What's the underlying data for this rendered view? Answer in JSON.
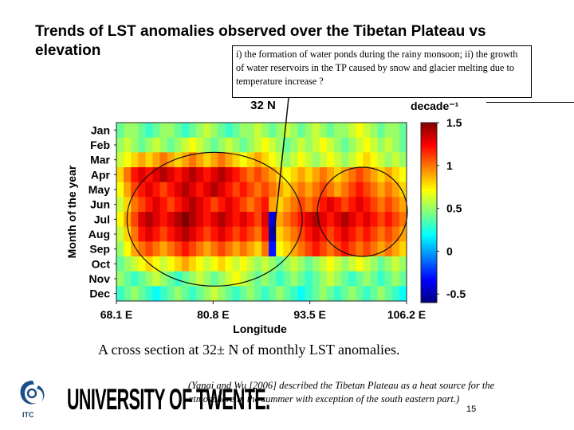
{
  "slide": {
    "title_line1": "Trends of LST anomalies observed over the Tibetan Plateau vs",
    "title_line2": "elevation",
    "note": "i) the formation of water ponds during the rainy monsoon; ii) the growth of water reservoirs in the TP caused by snow and glacier melting due to temperature increase ?",
    "caption": "A cross section at 32± N of monthly LST anomalies.",
    "citation": "(Yanai and Wu [2006] described the Tibetan Plateau as a heat source for the atmosphere in the summer with exception of the south eastern part.)",
    "page_number": "15",
    "logo_text": "UNIVERSITY OF TWENTE.",
    "logo_sub": "ITC"
  },
  "chart_data": {
    "type": "heatmap",
    "title": "32 N",
    "colorbar_label": "decade⁻¹",
    "xlabel": "Longitude",
    "ylabel": "Month of the year",
    "x_tick_labels": [
      "68.1 E",
      "80.8 E",
      "93.5 E",
      "106.2 E"
    ],
    "x_tick_values": [
      68.1,
      80.8,
      93.5,
      106.2
    ],
    "xlim": [
      68.1,
      106.2
    ],
    "y_tick_labels": [
      "Jan",
      "Feb",
      "Mar",
      "Apr",
      "May",
      "Jun",
      "Jul",
      "Aug",
      "Sep",
      "Oct",
      "Nov",
      "Dec"
    ],
    "colorbar_tick_labels": [
      "1.5",
      "1",
      "0.5",
      "0",
      "-0.5"
    ],
    "colorbar_tick_values": [
      1.5,
      1,
      0.5,
      0,
      -0.5
    ],
    "zlim": [
      -0.6,
      1.5
    ],
    "colormap": "jet",
    "annotations": [
      {
        "shape": "ellipse",
        "lon_range": [
          69.5,
          92.5
        ],
        "months": [
          "Mar",
          "Nov"
        ]
      },
      {
        "shape": "ellipse",
        "lon_range": [
          94.5,
          106.3
        ],
        "months": [
          "Apr",
          "Sep"
        ]
      },
      {
        "shape": "line",
        "from": "note",
        "to_lon": 88.8,
        "to_month": "Aug"
      }
    ],
    "rows": [
      {
        "month": "Jan",
        "values": [
          0.4,
          0.5,
          0.5,
          0.4,
          0.3,
          0.4,
          0.5,
          0.5,
          0.4,
          0.3,
          0.4,
          0.5,
          0.6,
          0.5,
          0.4,
          0.3,
          0.4,
          0.5,
          0.5,
          0.6,
          0.5,
          0.4,
          0.5,
          0.6,
          0.5,
          0.4,
          0.5,
          0.6,
          0.5,
          0.4,
          0.5,
          0.5,
          0.6,
          0.7,
          0.6,
          0.5,
          0.4,
          0.5,
          0.5,
          0.4
        ]
      },
      {
        "month": "Feb",
        "values": [
          0.5,
          0.6,
          0.5,
          0.4,
          0.5,
          0.6,
          0.5,
          0.4,
          0.5,
          0.6,
          0.7,
          0.6,
          0.5,
          0.4,
          0.5,
          0.6,
          0.5,
          0.4,
          0.5,
          0.6,
          0.7,
          0.6,
          0.5,
          0.4,
          0.5,
          0.6,
          0.5,
          0.6,
          0.7,
          0.6,
          0.5,
          0.4,
          0.5,
          0.6,
          0.7,
          0.6,
          0.5,
          0.6,
          0.5,
          0.4
        ]
      },
      {
        "month": "Mar",
        "values": [
          0.6,
          0.7,
          0.8,
          0.9,
          0.8,
          0.9,
          1.0,
          0.9,
          0.8,
          0.9,
          1.0,
          0.9,
          0.8,
          0.9,
          1.0,
          0.9,
          0.8,
          0.7,
          0.8,
          0.9,
          0.8,
          0.7,
          0.6,
          0.5,
          0.6,
          0.7,
          0.6,
          0.5,
          0.6,
          0.7,
          0.6,
          0.5,
          0.6,
          0.7,
          0.8,
          0.7,
          0.6,
          0.5,
          0.6,
          0.5
        ]
      },
      {
        "month": "Apr",
        "values": [
          0.8,
          1.0,
          1.2,
          1.3,
          1.2,
          1.3,
          1.4,
          1.3,
          1.2,
          1.3,
          1.4,
          1.3,
          1.2,
          1.3,
          1.4,
          1.3,
          1.2,
          1.1,
          1.0,
          1.1,
          1.0,
          0.9,
          0.8,
          0.7,
          0.8,
          0.9,
          0.8,
          0.9,
          1.0,
          0.9,
          0.8,
          0.9,
          1.0,
          1.1,
          1.0,
          0.9,
          0.8,
          0.9,
          0.8,
          0.7
        ]
      },
      {
        "month": "May",
        "values": [
          0.7,
          0.9,
          1.1,
          1.2,
          1.3,
          1.2,
          1.1,
          1.2,
          1.3,
          1.4,
          1.3,
          1.2,
          1.3,
          1.4,
          1.3,
          1.2,
          1.1,
          1.2,
          1.1,
          1.0,
          1.1,
          1.0,
          0.9,
          0.8,
          0.9,
          1.0,
          0.9,
          1.0,
          1.1,
          1.0,
          0.9,
          1.0,
          1.1,
          1.2,
          1.1,
          1.0,
          0.9,
          1.0,
          0.9,
          0.8
        ]
      },
      {
        "month": "Jun",
        "values": [
          0.6,
          0.8,
          1.0,
          1.1,
          1.2,
          1.3,
          1.2,
          1.1,
          1.2,
          1.3,
          1.4,
          1.3,
          1.2,
          1.1,
          1.2,
          1.3,
          1.2,
          1.1,
          1.0,
          1.1,
          1.2,
          0.9,
          0.8,
          0.9,
          1.0,
          1.1,
          1.0,
          1.1,
          1.2,
          1.3,
          1.2,
          1.1,
          1.2,
          1.3,
          1.2,
          1.1,
          1.0,
          1.1,
          1.0,
          0.9
        ]
      },
      {
        "month": "Jul",
        "values": [
          0.7,
          0.9,
          1.1,
          1.3,
          1.4,
          1.3,
          1.2,
          1.3,
          1.4,
          1.5,
          1.4,
          1.3,
          1.2,
          1.3,
          1.4,
          1.3,
          1.2,
          1.3,
          1.2,
          1.1,
          1.3,
          -0.4,
          0.9,
          1.0,
          1.1,
          1.2,
          1.3,
          1.4,
          1.3,
          1.2,
          1.3,
          1.4,
          1.3,
          1.2,
          1.3,
          1.2,
          1.1,
          1.2,
          1.1,
          1.0
        ]
      },
      {
        "month": "Aug",
        "values": [
          0.6,
          0.8,
          1.0,
          1.2,
          1.3,
          1.2,
          1.1,
          1.2,
          1.3,
          1.4,
          1.3,
          1.2,
          1.1,
          1.2,
          1.3,
          1.2,
          1.1,
          1.2,
          1.1,
          1.0,
          1.2,
          -0.5,
          0.8,
          0.9,
          1.0,
          1.1,
          1.2,
          1.3,
          1.2,
          1.1,
          1.2,
          1.3,
          1.2,
          1.1,
          1.2,
          1.1,
          1.0,
          1.1,
          1.0,
          0.9
        ]
      },
      {
        "month": "Sep",
        "values": [
          0.5,
          0.7,
          0.9,
          1.0,
          1.1,
          1.0,
          0.9,
          1.0,
          1.1,
          1.2,
          1.1,
          1.0,
          0.9,
          1.0,
          1.1,
          1.0,
          0.9,
          1.0,
          0.9,
          0.8,
          1.0,
          -0.3,
          0.7,
          0.8,
          0.9,
          1.0,
          1.1,
          1.2,
          1.1,
          1.0,
          1.1,
          1.2,
          1.1,
          1.0,
          1.1,
          1.0,
          0.9,
          1.0,
          0.9,
          0.8
        ]
      },
      {
        "month": "Oct",
        "values": [
          0.4,
          0.5,
          0.6,
          0.7,
          0.8,
          0.7,
          0.6,
          0.7,
          0.8,
          0.9,
          0.8,
          0.7,
          0.6,
          0.7,
          0.8,
          0.7,
          0.6,
          0.7,
          0.6,
          0.5,
          0.6,
          0.5,
          0.4,
          0.5,
          0.6,
          0.5,
          0.4,
          0.5,
          0.6,
          0.7,
          0.6,
          0.5,
          0.6,
          0.7,
          0.6,
          0.5,
          0.4,
          0.5,
          0.6,
          0.5
        ]
      },
      {
        "month": "Nov",
        "values": [
          0.5,
          0.4,
          0.3,
          0.4,
          0.5,
          0.6,
          0.5,
          0.4,
          0.3,
          0.4,
          0.5,
          0.6,
          0.5,
          0.4,
          0.5,
          0.6,
          0.7,
          0.6,
          0.5,
          0.4,
          0.5,
          0.4,
          0.3,
          0.4,
          0.5,
          0.4,
          0.3,
          0.4,
          0.5,
          0.6,
          0.5,
          0.4,
          0.3,
          0.4,
          0.5,
          0.4,
          0.3,
          0.4,
          0.5,
          0.4
        ]
      },
      {
        "month": "Dec",
        "values": [
          0.3,
          0.4,
          0.5,
          0.4,
          0.3,
          0.2,
          0.3,
          0.4,
          0.5,
          0.4,
          0.3,
          0.4,
          0.5,
          0.6,
          0.5,
          0.4,
          0.3,
          0.4,
          0.5,
          0.4,
          0.3,
          0.4,
          0.5,
          0.4,
          0.3,
          0.2,
          0.3,
          0.4,
          0.5,
          0.4,
          0.3,
          0.4,
          0.5,
          0.4,
          0.3,
          0.4,
          0.5,
          0.4,
          0.3,
          0.2
        ]
      }
    ]
  }
}
